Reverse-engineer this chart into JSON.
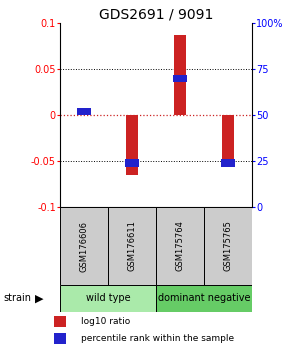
{
  "title": "GDS2691 / 9091",
  "samples": [
    "GSM176606",
    "GSM176611",
    "GSM175764",
    "GSM175765"
  ],
  "log10_ratio": [
    0.002,
    -0.065,
    0.087,
    -0.05
  ],
  "percentile_rank": [
    52,
    24,
    70,
    24
  ],
  "ylim_left": [
    -0.1,
    0.1
  ],
  "ylim_right": [
    0,
    100
  ],
  "yticks_left": [
    -0.1,
    -0.05,
    0,
    0.05,
    0.1
  ],
  "yticks_right": [
    0,
    25,
    50,
    75,
    100
  ],
  "ytick_labels_left": [
    "-0.1",
    "-0.05",
    "0",
    "0.05",
    "0.1"
  ],
  "ytick_labels_right": [
    "0",
    "25",
    "50",
    "75",
    "100%"
  ],
  "groups": [
    {
      "label": "wild type",
      "samples": [
        0,
        1
      ],
      "color": "#aaeaaa"
    },
    {
      "label": "dominant negative",
      "samples": [
        2,
        3
      ],
      "color": "#66cc66"
    }
  ],
  "bar_color": "#cc2222",
  "point_color": "#2222cc",
  "dotted_line_color_zero": "#cc2222",
  "dotted_line_color_grid": "#000000",
  "background_color": "#ffffff",
  "plot_bg": "#ffffff",
  "sample_box_color": "#cccccc",
  "title_fontsize": 10,
  "tick_fontsize": 7,
  "bar_width": 0.25
}
